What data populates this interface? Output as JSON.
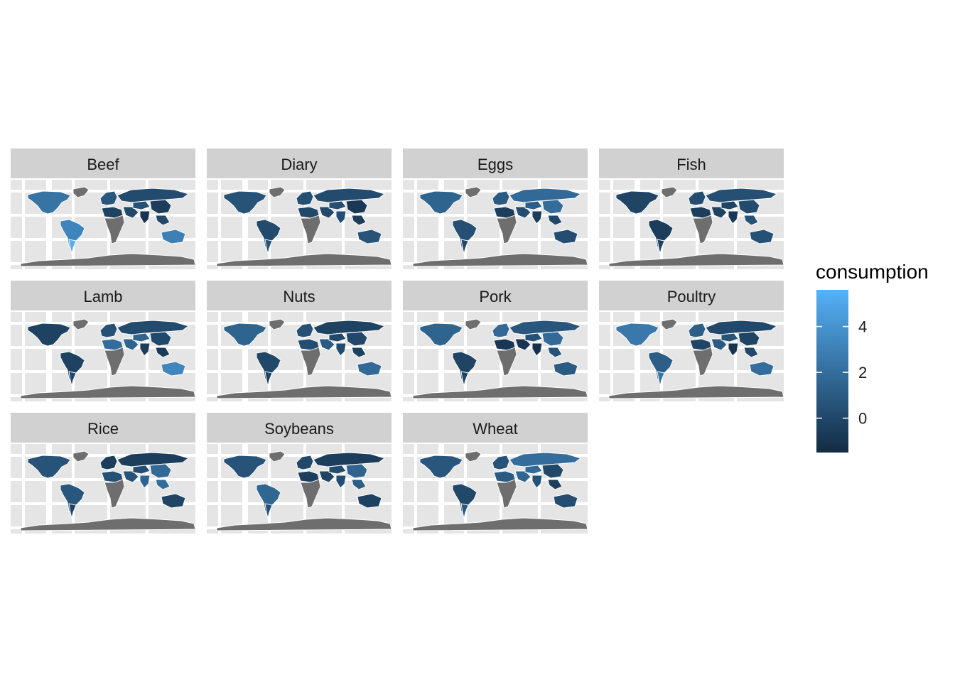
{
  "chart_data": {
    "type": "choropleth-map-facets",
    "facets": [
      "Beef",
      "Diary",
      "Eggs",
      "Fish",
      "Lamb",
      "Nuts",
      "Pork",
      "Poultry",
      "Rice",
      "Soybeans",
      "Wheat"
    ],
    "facet_layout": {
      "ncol": 4,
      "nrow": 3
    },
    "legend": {
      "title": "consumption",
      "breaks": [
        4,
        2,
        0
      ],
      "range": [
        -1.5,
        5.6
      ],
      "low_color": "#132b43",
      "high_color": "#56b1f7",
      "placement": "right"
    },
    "regions": [
      "north_america",
      "greenland",
      "south_america",
      "europe",
      "north_africa",
      "sub_saharan_africa",
      "middle_east",
      "russia",
      "central_asia",
      "china",
      "india",
      "southeast_asia",
      "australia",
      "antarctica"
    ],
    "missing_color": "#6e6e6e",
    "panel_background": "#e5e5e5",
    "strip_background": "#d1d1d1",
    "grid_color": "#ffffff",
    "values": {
      "Beef": {
        "north_america": 2.3,
        "south_america": 3.2,
        "south_cone": 5.4,
        "europe": 0.8,
        "north_africa": -0.3,
        "sub_saharan_africa": null,
        "middle_east": 0.0,
        "russia": 0.2,
        "central_asia": 0.5,
        "china": -0.5,
        "india": -1.0,
        "southeast_asia": 0.0,
        "australia": 3.0
      },
      "Diary": {
        "north_america": 0.6,
        "south_america": 0.2,
        "south_cone": 0.5,
        "europe": 0.4,
        "north_africa": 0.0,
        "sub_saharan_africa": null,
        "middle_east": 0.1,
        "russia": 0.2,
        "central_asia": 0.4,
        "china": -0.8,
        "india": 0.3,
        "southeast_asia": -0.6,
        "australia": 0.6
      },
      "Eggs": {
        "north_america": 1.5,
        "south_america": 0.4,
        "south_cone": 0.0,
        "europe": 1.0,
        "north_africa": -0.5,
        "sub_saharan_africa": null,
        "middle_east": 0.3,
        "russia": 1.8,
        "central_asia": 1.2,
        "china": 2.0,
        "india": -0.6,
        "southeast_asia": 0.0,
        "australia": 0.3
      },
      "Fish": {
        "north_america": -0.2,
        "south_america": -0.5,
        "south_cone": -0.4,
        "europe": 0.3,
        "north_africa": -0.5,
        "sub_saharan_africa": null,
        "middle_east": -0.3,
        "russia": 0.4,
        "central_asia": -0.2,
        "china": 0.2,
        "india": -0.8,
        "southeast_asia": 0.5,
        "australia": 0.5
      },
      "Lamb": {
        "north_america": -0.3,
        "south_america": -0.3,
        "south_cone": 0.0,
        "europe": 0.5,
        "north_africa": 2.0,
        "sub_saharan_africa": null,
        "middle_east": 1.5,
        "russia": 0.2,
        "central_asia": 1.5,
        "china": 0.1,
        "india": -0.5,
        "southeast_asia": -0.7,
        "australia": 3.3
      },
      "Nuts": {
        "north_america": 1.5,
        "south_america": 0.0,
        "south_cone": -0.3,
        "europe": 0.5,
        "north_africa": 0.3,
        "sub_saharan_africa": null,
        "middle_east": 1.0,
        "russia": -0.3,
        "central_asia": 0.0,
        "china": 0.0,
        "india": 0.2,
        "southeast_asia": -0.4,
        "australia": 1.8
      },
      "Pork": {
        "north_america": 1.5,
        "south_america": -0.2,
        "south_cone": -0.3,
        "europe": 1.8,
        "north_africa": -0.9,
        "sub_saharan_africa": null,
        "middle_east": -1.0,
        "russia": 0.8,
        "central_asia": 0.5,
        "china": 1.8,
        "india": -1.2,
        "southeast_asia": 0.6,
        "australia": 1.0
      },
      "Poultry": {
        "north_america": 2.6,
        "south_america": 1.2,
        "south_cone": 2.5,
        "europe": 1.2,
        "north_africa": -0.1,
        "sub_saharan_africa": null,
        "middle_east": 1.0,
        "russia": 0.1,
        "central_asia": 0.6,
        "china": -0.2,
        "india": -1.0,
        "southeast_asia": 0.0,
        "australia": 2.0
      },
      "Rice": {
        "north_america": 0.6,
        "south_america": 0.8,
        "south_cone": -0.3,
        "europe": -0.5,
        "north_africa": 0.5,
        "sub_saharan_africa": null,
        "middle_east": 0.6,
        "russia": -0.5,
        "central_asia": 0.3,
        "china": 1.8,
        "india": 1.5,
        "southeast_asia": 2.0,
        "australia": -0.2
      },
      "Soybeans": {
        "north_america": 0.6,
        "south_america": 1.6,
        "south_cone": 0.5,
        "europe": 0.0,
        "north_africa": -0.5,
        "sub_saharan_africa": null,
        "middle_east": -0.2,
        "russia": -0.5,
        "central_asia": 0.2,
        "china": 1.5,
        "india": 0.3,
        "southeast_asia": 1.2,
        "australia": -0.3
      },
      "Wheat": {
        "north_america": 0.8,
        "south_america": 0.0,
        "south_cone": 0.8,
        "europe": 0.6,
        "north_africa": 1.0,
        "sub_saharan_africa": null,
        "middle_east": 1.6,
        "russia": 2.0,
        "central_asia": 1.8,
        "china": 0.0,
        "india": 0.5,
        "southeast_asia": -0.5,
        "australia": 0.3
      }
    }
  }
}
